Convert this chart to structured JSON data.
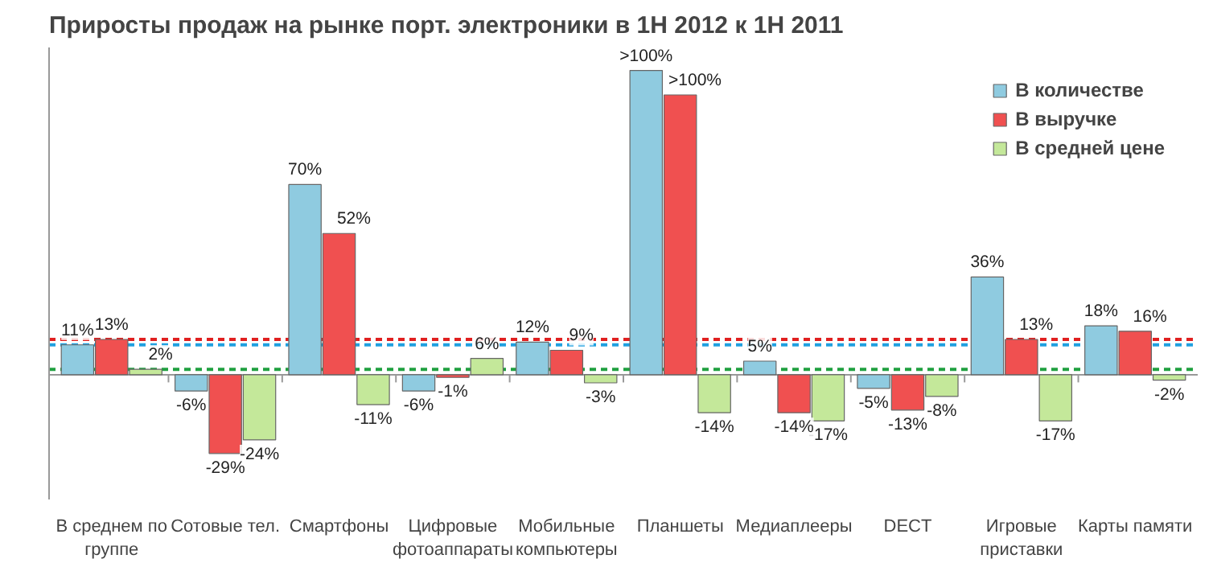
{
  "chart_data": {
    "type": "bar",
    "title": "Приросты продаж на рынке порт. электроники в 1H 2012 к 1H 2011",
    "categories": [
      "В среднем по группе",
      "Сотовые тел.",
      "Смартфоны",
      "Цифровые фотоаппараты",
      "Мобильные компьютеры",
      "Планшеты",
      "Медиаплееры",
      "DECT",
      "Игровые приставки",
      "Карты памяти"
    ],
    "series": [
      {
        "name": "В количестве",
        "color": "#8fcbe0",
        "values": [
          11,
          -6,
          70,
          -6,
          12,
          112,
          5,
          -5,
          36,
          18
        ],
        "value_labels": [
          "11%",
          "-6%",
          "70%",
          "-6%",
          "12%",
          ">100%",
          "5%",
          "-5%",
          "36%",
          "18%"
        ]
      },
      {
        "name": "В выручке",
        "color": "#f05050",
        "values": [
          13,
          -29,
          52,
          -1,
          9,
          103,
          -14,
          -13,
          13,
          16
        ],
        "value_labels": [
          "13%",
          "-29%",
          "52%",
          "-1%",
          "9%",
          ">100%",
          "-14%",
          "-13%",
          "13%",
          "16%"
        ]
      },
      {
        "name": "В средней цене",
        "color": "#c4e89a",
        "values": [
          2,
          -24,
          -11,
          6,
          -3,
          -14,
          -17,
          -8,
          -17,
          -2
        ],
        "value_labels": [
          "2%",
          "-24%",
          "-11%",
          "6%",
          "-3%",
          "-14%",
          "-17%",
          "-8%",
          "-17%",
          "-2%"
        ]
      }
    ],
    "ref_lines": [
      {
        "axis": "y",
        "value": 13,
        "color": "#e02020",
        "line_style": "dashed"
      },
      {
        "axis": "y",
        "value": 11,
        "color": "#20a0e0",
        "line_style": "dashed"
      },
      {
        "axis": "y",
        "value": 2,
        "color": "#20a040",
        "line_style": "dashed"
      }
    ],
    "legend": "top right",
    "grid": false
  }
}
